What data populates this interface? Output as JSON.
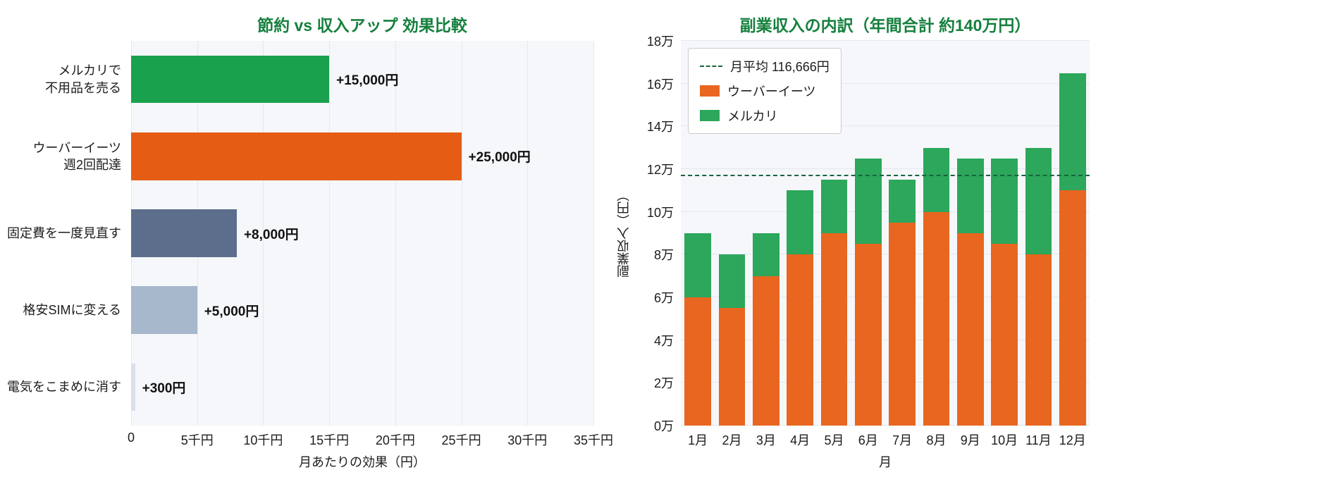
{
  "styles": {
    "title_color": "#15803d",
    "plot_background": "#f6f7fa",
    "grid_color": "#e3e7ef",
    "text_color": "#1c1c1c",
    "legend_border": "#cccccc"
  },
  "chart_data": [
    {
      "type": "bar",
      "orientation": "horizontal",
      "title": "節約 vs 収入アップ 効果比較",
      "xlabel": "月あたりの効果（円）",
      "xlim": [
        0,
        35000
      ],
      "grid": true,
      "x_ticks": [
        {
          "value": 0,
          "label": "0"
        },
        {
          "value": 5000,
          "label": "5千円"
        },
        {
          "value": 10000,
          "label": "10千円"
        },
        {
          "value": 15000,
          "label": "15千円"
        },
        {
          "value": 20000,
          "label": "20千円"
        },
        {
          "value": 25000,
          "label": "25千円"
        },
        {
          "value": 30000,
          "label": "30千円"
        },
        {
          "value": 35000,
          "label": "35千円"
        }
      ],
      "bars": [
        {
          "key": "mercari",
          "category": "メルカリで\n不用品を売る",
          "value": 15000,
          "value_label": "+15,000円",
          "color": "#1aa14e"
        },
        {
          "key": "uber-eats",
          "category": "ウーバーイーツ\n週2回配達",
          "value": 25000,
          "value_label": "+25,000円",
          "color": "#e55d15"
        },
        {
          "key": "fixed-costs",
          "category": "固定費を一度見直す",
          "value": 8000,
          "value_label": "+8,000円",
          "color": "#5c6e8b"
        },
        {
          "key": "cheap-sim",
          "category": "格安SIMに変える",
          "value": 5000,
          "value_label": "+5,000円",
          "color": "#a7b8cd"
        },
        {
          "key": "electricity",
          "category": "電気をこまめに消す",
          "value": 300,
          "value_label": "+300円",
          "color": "#d9e0ea"
        }
      ]
    },
    {
      "type": "bar",
      "stacked": true,
      "title": "副業収入の内訳（年間合計 約140万円）",
      "xlabel": "月",
      "ylabel": "副業収入（円）",
      "ylim": [
        0,
        180000
      ],
      "grid": true,
      "legend_position": "upper left",
      "categories": [
        "1月",
        "2月",
        "3月",
        "4月",
        "5月",
        "6月",
        "7月",
        "8月",
        "9月",
        "10月",
        "11月",
        "12月"
      ],
      "y_ticks": [
        {
          "value": 0,
          "label": "0万"
        },
        {
          "value": 20000,
          "label": "2万"
        },
        {
          "value": 40000,
          "label": "4万"
        },
        {
          "value": 60000,
          "label": "6万"
        },
        {
          "value": 80000,
          "label": "8万"
        },
        {
          "value": 100000,
          "label": "10万"
        },
        {
          "value": 120000,
          "label": "12万"
        },
        {
          "value": 140000,
          "label": "14万"
        },
        {
          "value": 160000,
          "label": "16万"
        },
        {
          "value": 180000,
          "label": "18万"
        }
      ],
      "series": [
        {
          "key": "uber-eats",
          "name": "ウーバーイーツ",
          "color": "#e8661f",
          "values": [
            60000,
            55000,
            70000,
            80000,
            90000,
            85000,
            95000,
            100000,
            90000,
            85000,
            80000,
            110000
          ]
        },
        {
          "key": "mercari",
          "name": "メルカリ",
          "color": "#2ca75b",
          "values": [
            30000,
            25000,
            20000,
            30000,
            25000,
            40000,
            20000,
            30000,
            35000,
            40000,
            50000,
            55000
          ]
        }
      ],
      "average_line": {
        "value": 116666,
        "label": "月平均 116,666円",
        "color": "#17653f",
        "style": "dashed"
      }
    }
  ]
}
